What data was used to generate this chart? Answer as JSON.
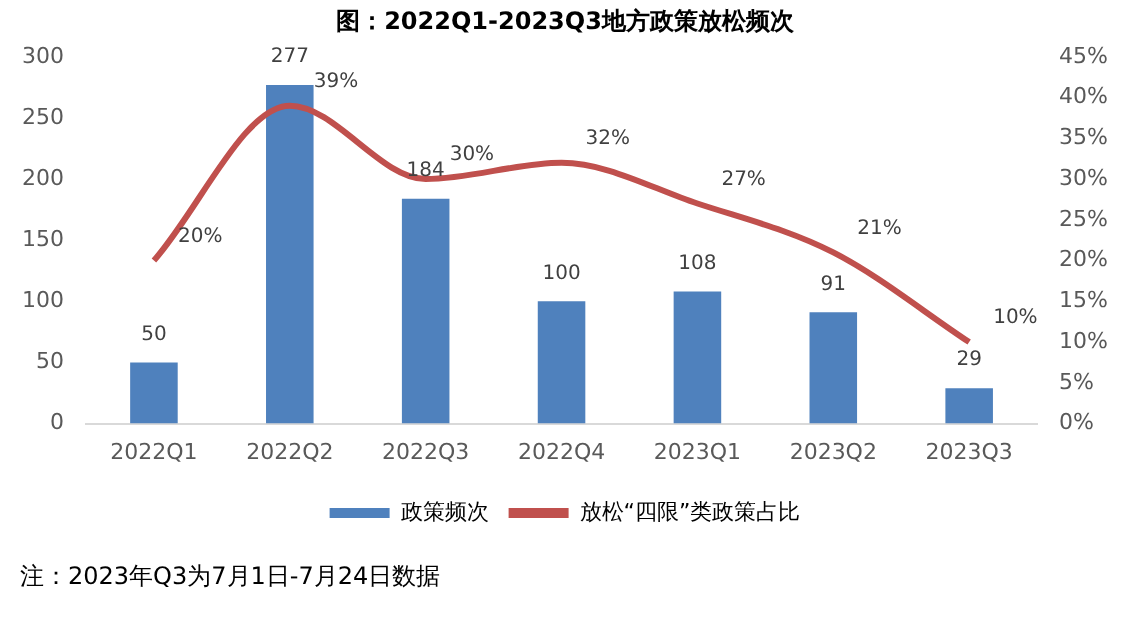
{
  "chart_data": {
    "type": "line",
    "title": "图：2022Q1-2023Q3地方政策放松频次",
    "categories": [
      "2022Q1",
      "2022Q2",
      "2022Q3",
      "2022Q4",
      "2023Q1",
      "2023Q2",
      "2023Q3"
    ],
    "series": [
      {
        "name": "政策频次",
        "type": "bar",
        "color": "#4f81bd",
        "values": [
          50,
          277,
          184,
          100,
          108,
          91,
          29
        ],
        "value_labels": [
          "50",
          "277",
          "184",
          "100",
          "108",
          "91",
          "29"
        ]
      },
      {
        "name": "放松“四限”类政策占比",
        "axis": "y2",
        "color": "#c0504d",
        "values": [
          20,
          39,
          30,
          32,
          27,
          21,
          10
        ],
        "value_labels": [
          "20%",
          "39%",
          "30%",
          "32%",
          "27%",
          "21%",
          "10%"
        ]
      }
    ],
    "ylim": [
      0,
      300
    ],
    "yticks": [
      0,
      50,
      100,
      150,
      200,
      250,
      300
    ],
    "y2lim": [
      0,
      45
    ],
    "y2ticks": [
      {
        "value": 0,
        "label": "0%"
      },
      {
        "value": 5,
        "label": "5%"
      },
      {
        "value": 10,
        "label": "10%"
      },
      {
        "value": 15,
        "label": "15%"
      },
      {
        "value": 20,
        "label": "20%"
      },
      {
        "value": 25,
        "label": "25%"
      },
      {
        "value": 30,
        "label": "30%"
      },
      {
        "value": 35,
        "label": "35%"
      },
      {
        "value": 40,
        "label": "40%"
      },
      {
        "value": 45,
        "label": "45%"
      }
    ],
    "grid": false,
    "legend": "bottom",
    "marker": "none",
    "line_style": "solid",
    "annotations": [
      "注：2023年Q3为7月1日-7月24日数据"
    ]
  }
}
